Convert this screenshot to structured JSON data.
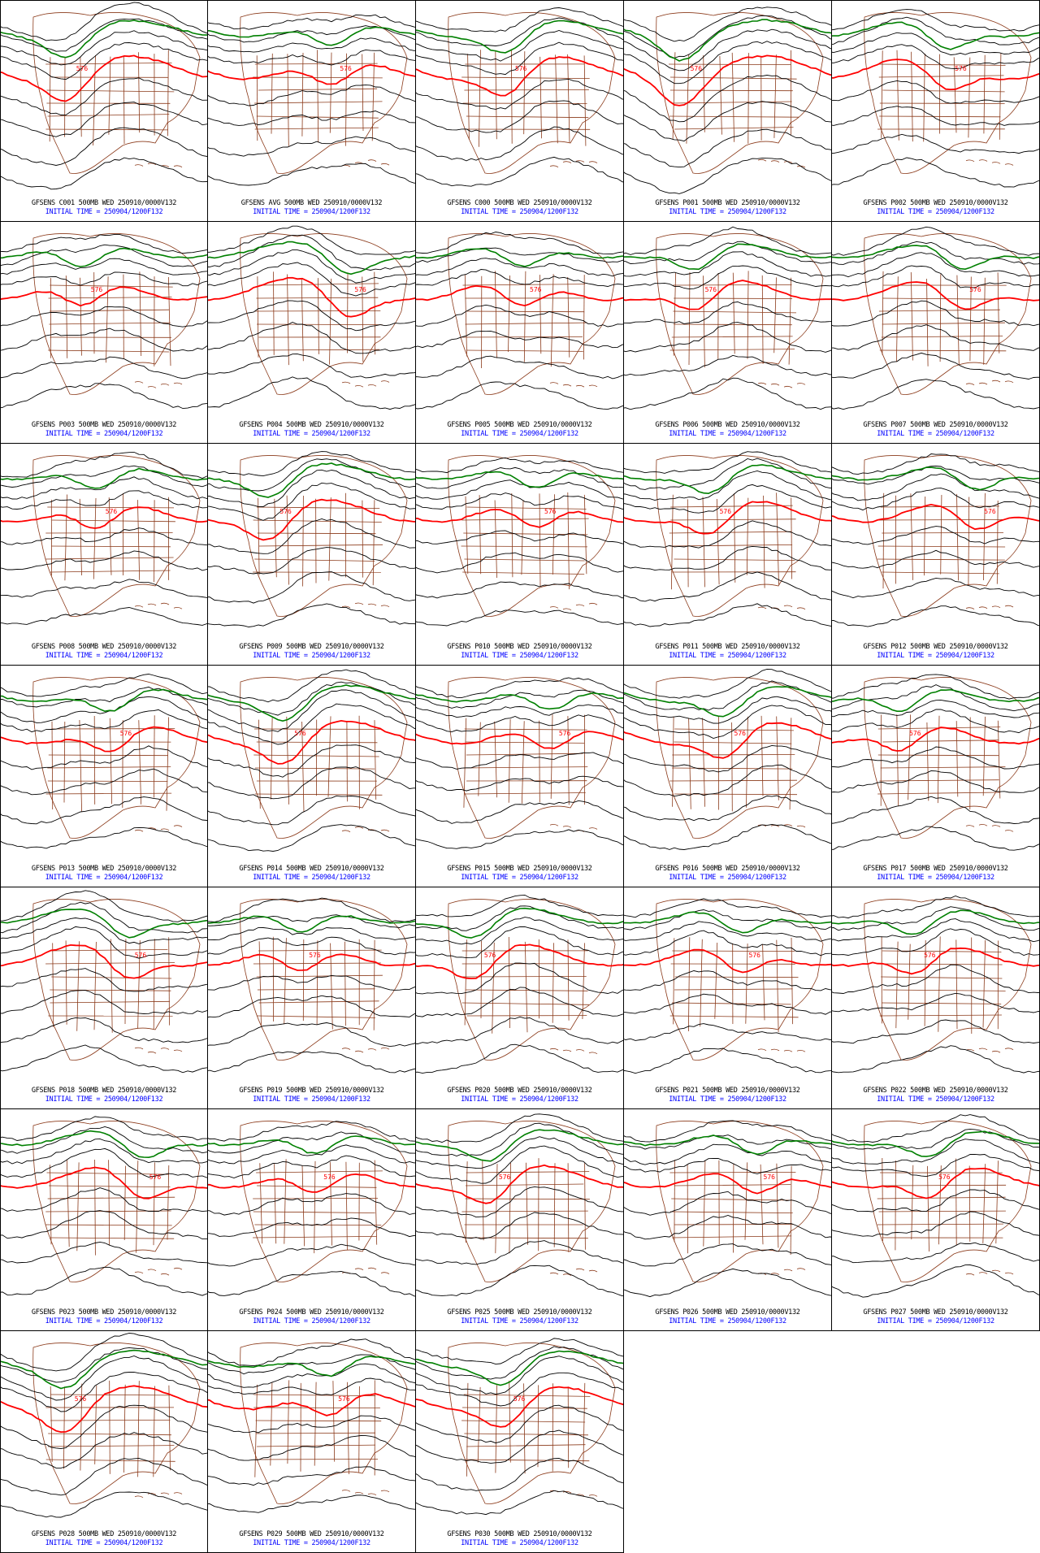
{
  "figure": {
    "colors": {
      "background": "#ffffff",
      "contour": "#000000",
      "contour_576": "#ff0000",
      "contour_552": "#008000",
      "boundaries": "#8b3a1a",
      "caption_title": "#000000",
      "caption_time": "#0000ff"
    },
    "contour_label_576": "576",
    "contour_label_552": "552"
  },
  "panels": [
    {
      "title": "GFSENS C001 500MB WED 250910/0000V132",
      "init": "INITIAL TIME = 250904/1200F132"
    },
    {
      "title": "GFSENS AVG 500MB WED 250910/0000V132",
      "init": "INITIAL TIME = 250904/1200F132"
    },
    {
      "title": "GFSENS C000 500MB WED 250910/0000V132",
      "init": "INITIAL TIME = 250904/1200F132"
    },
    {
      "title": "GFSENS P001 500MB WED 250910/0000V132",
      "init": "INITIAL TIME = 250904/1200F132"
    },
    {
      "title": "GFSENS P002 500MB WED 250910/0000V132",
      "init": "INITIAL TIME = 250904/1200F132"
    },
    {
      "title": "GFSENS P003 500MB WED 250910/0000V132",
      "init": "INITIAL TIME = 250904/1200F132"
    },
    {
      "title": "GFSENS P004 500MB WED 250910/0000V132",
      "init": "INITIAL TIME = 250904/1200F132"
    },
    {
      "title": "GFSENS P005 500MB WED 250910/0000V132",
      "init": "INITIAL TIME = 250904/1200F132"
    },
    {
      "title": "GFSENS P006 500MB WED 250910/0000V132",
      "init": "INITIAL TIME = 250904/1200F132"
    },
    {
      "title": "GFSENS P007 500MB WED 250910/0000V132",
      "init": "INITIAL TIME = 250904/1200F132"
    },
    {
      "title": "GFSENS P008 500MB WED 250910/0000V132",
      "init": "INITIAL TIME = 250904/1200F132"
    },
    {
      "title": "GFSENS P009 500MB WED 250910/0000V132",
      "init": "INITIAL TIME = 250904/1200F132"
    },
    {
      "title": "GFSENS P010 500MB WED 250910/0000V132",
      "init": "INITIAL TIME = 250904/1200F132"
    },
    {
      "title": "GFSENS P011 500MB WED 250910/0000V132",
      "init": "INITIAL TIME = 250904/1200F132"
    },
    {
      "title": "GFSENS P012 500MB WED 250910/0000V132",
      "init": "INITIAL TIME = 250904/1200F132"
    },
    {
      "title": "GFSENS P013 500MB WED 250910/0000V132",
      "init": "INITIAL TIME = 250904/1200F132"
    },
    {
      "title": "GFSENS P014 500MB WED 250910/0000V132",
      "init": "INITIAL TIME = 250904/1200F132"
    },
    {
      "title": "GFSENS P015 500MB WED 250910/0000V132",
      "init": "INITIAL TIME = 250904/1200F132"
    },
    {
      "title": "GFSENS P016 500MB WED 250910/0000V132",
      "init": "INITIAL TIME = 250904/1200F132"
    },
    {
      "title": "GFSENS P017 500MB WED 250910/0000V132",
      "init": "INITIAL TIME = 250904/1200F132"
    },
    {
      "title": "GFSENS P018 500MB WED 250910/0000V132",
      "init": "INITIAL TIME = 250904/1200F132"
    },
    {
      "title": "GFSENS P019 500MB WED 250910/0000V132",
      "init": "INITIAL TIME = 250904/1200F132"
    },
    {
      "title": "GFSENS P020 500MB WED 250910/0000V132",
      "init": "INITIAL TIME = 250904/1200F132"
    },
    {
      "title": "GFSENS P021 500MB WED 250910/0000V132",
      "init": "INITIAL TIME = 250904/1200F132"
    },
    {
      "title": "GFSENS P022 500MB WED 250910/0000V132",
      "init": "INITIAL TIME = 250904/1200F132"
    },
    {
      "title": "GFSENS P023 500MB WED 250910/0000V132",
      "init": "INITIAL TIME = 250904/1200F132"
    },
    {
      "title": "GFSENS P024 500MB WED 250910/0000V132",
      "init": "INITIAL TIME = 250904/1200F132"
    },
    {
      "title": "GFSENS P025 500MB WED 250910/0000V132",
      "init": "INITIAL TIME = 250904/1200F132"
    },
    {
      "title": "GFSENS P026 500MB WED 250910/0000V132",
      "init": "INITIAL TIME = 250904/1200F132"
    },
    {
      "title": "GFSENS P027 500MB WED 250910/0000V132",
      "init": "INITIAL TIME = 250904/1200F132"
    },
    {
      "title": "GFSENS P028 500MB WED 250910/0000V132",
      "init": "INITIAL TIME = 250904/1200F132"
    },
    {
      "title": "GFSENS P029 500MB WED 250910/0000V132",
      "init": "INITIAL TIME = 250904/1200F132"
    },
    {
      "title": "GFSENS P030 500MB WED 250910/0000V132",
      "init": "INITIAL TIME = 250904/1200F132"
    }
  ]
}
